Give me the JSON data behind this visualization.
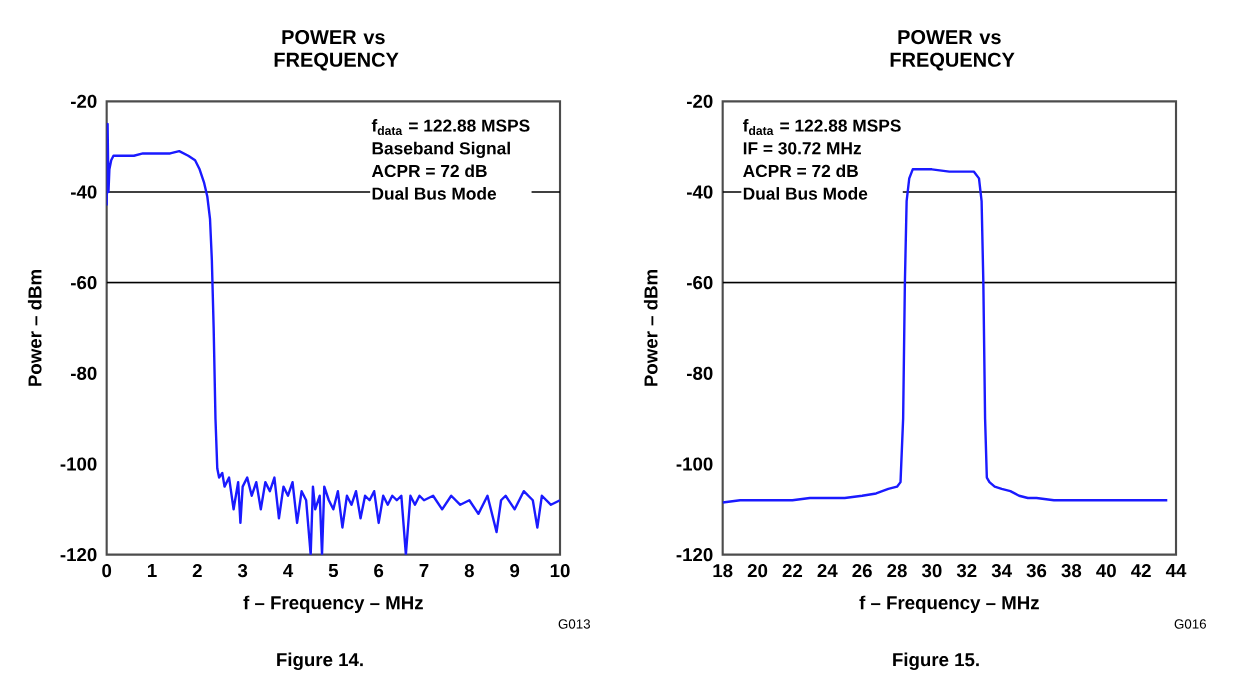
{
  "chart_data": [
    {
      "type": "line",
      "title": "POWER vs FREQUENCY",
      "xlabel": "f – Frequency – MHz",
      "ylabel": "Power – dBm",
      "annotations": [
        "f$_{data}$ = 122.88 MSPS",
        "Baseband Signal",
        "ACPR = 72 dB",
        "Dual Bus Mode",
        "Figure 14.",
        "G013"
      ],
      "xlim": [
        0,
        10
      ],
      "ylim": [
        -120,
        -20
      ],
      "xticks": [
        0,
        1,
        2,
        3,
        4,
        5,
        6,
        7,
        8,
        9,
        10
      ],
      "yticks": [
        -120,
        -100,
        -80,
        -60,
        -40,
        -20
      ],
      "ref_lines": [
        {
          "axis": "y",
          "value": -40,
          "color": "#000000"
        },
        {
          "axis": "y",
          "value": -60,
          "color": "#000000"
        }
      ],
      "series": [
        {
          "color": "#1a1aff",
          "x": [
            0,
            0.02,
            0.04,
            0.06,
            0.1,
            0.15,
            0.25,
            0.4,
            0.6,
            0.8,
            1.0,
            1.2,
            1.4,
            1.6,
            1.8,
            1.95,
            2.05,
            2.15,
            2.22,
            2.28,
            2.32,
            2.36,
            2.4,
            2.44,
            2.48,
            2.55,
            2.6,
            2.7,
            2.8,
            2.9,
            2.95,
            3.0,
            3.1,
            3.2,
            3.3,
            3.4,
            3.5,
            3.6,
            3.7,
            3.8,
            3.9,
            4.0,
            4.1,
            4.2,
            4.3,
            4.4,
            4.5,
            4.55,
            4.6,
            4.7,
            4.75,
            4.8,
            4.9,
            5.0,
            5.1,
            5.2,
            5.3,
            5.4,
            5.5,
            5.6,
            5.7,
            5.8,
            5.9,
            6.0,
            6.1,
            6.2,
            6.3,
            6.4,
            6.5,
            6.6,
            6.7,
            6.8,
            6.9,
            7.0,
            7.2,
            7.4,
            7.6,
            7.8,
            8.0,
            8.2,
            8.4,
            8.6,
            8.7,
            8.8,
            9.0,
            9.2,
            9.4,
            9.5,
            9.6,
            9.8,
            10.0
          ],
          "values": [
            -43,
            -25,
            -40,
            -35,
            -33,
            -32,
            -32,
            -32,
            -32,
            -31.5,
            -31.5,
            -31.5,
            -31.5,
            -31,
            -32,
            -33,
            -35,
            -38,
            -41,
            -46,
            -55,
            -70,
            -90,
            -101,
            -103,
            -102,
            -105,
            -103,
            -110,
            -104,
            -113,
            -105,
            -103,
            -107,
            -104,
            -110,
            -104,
            -106,
            -103,
            -112,
            -105,
            -107,
            -104,
            -113,
            -106,
            -108,
            -120,
            -105,
            -110,
            -107,
            -120,
            -105,
            -108,
            -110,
            -106,
            -114,
            -107,
            -109,
            -106,
            -112,
            -107,
            -108,
            -106,
            -113,
            -107,
            -109,
            -107,
            -108,
            -107,
            -120,
            -107,
            -109,
            -107,
            -108,
            -107,
            -110,
            -107,
            -109,
            -108,
            -111,
            -107,
            -115,
            -108,
            -107,
            -110,
            -106,
            -108,
            -114,
            -107,
            -109,
            -108
          ]
        }
      ]
    },
    {
      "type": "line",
      "title": "POWER vs FREQUENCY",
      "xlabel": "f – Frequency – MHz",
      "ylabel": "Power – dBm",
      "annotations": [
        "f$_{data}$ = 122.88 MSPS",
        "IF = 30.72 MHz",
        "ACPR = 72 dB",
        "Dual Bus Mode",
        "Figure 15.",
        "G016"
      ],
      "xlim": [
        18,
        44
      ],
      "ylim": [
        -120,
        -20
      ],
      "xticks": [
        18,
        20,
        22,
        24,
        26,
        28,
        30,
        32,
        34,
        36,
        38,
        40,
        42,
        44
      ],
      "yticks": [
        -120,
        -100,
        -80,
        -60,
        -40,
        -20
      ],
      "ref_lines": [
        {
          "axis": "y",
          "value": -40,
          "color": "#000000"
        },
        {
          "axis": "y",
          "value": -60,
          "color": "#000000"
        }
      ],
      "series": [
        {
          "color": "#1a1aff",
          "x": [
            18,
            19,
            20,
            21,
            22,
            23,
            24,
            25,
            26,
            26.8,
            27.5,
            28.0,
            28.2,
            28.35,
            28.45,
            28.55,
            28.7,
            28.9,
            29.2,
            30,
            31,
            32,
            32.4,
            32.7,
            32.85,
            32.95,
            33.05,
            33.15,
            33.3,
            33.6,
            34,
            34.5,
            35,
            35.5,
            36,
            37,
            38,
            39,
            40,
            41,
            42,
            43,
            43.5
          ],
          "values": [
            -108.5,
            -108,
            -108,
            -108,
            -108,
            -107.5,
            -107.5,
            -107.5,
            -107,
            -106.5,
            -105.5,
            -105,
            -104,
            -90,
            -60,
            -42,
            -37,
            -35,
            -35,
            -35,
            -35.5,
            -35.5,
            -35.5,
            -37,
            -42,
            -60,
            -90,
            -103,
            -104,
            -105,
            -105.5,
            -106,
            -107,
            -107.5,
            -107.5,
            -108,
            -108,
            -108,
            -108,
            -108,
            -108,
            -108,
            -108
          ]
        }
      ]
    }
  ]
}
